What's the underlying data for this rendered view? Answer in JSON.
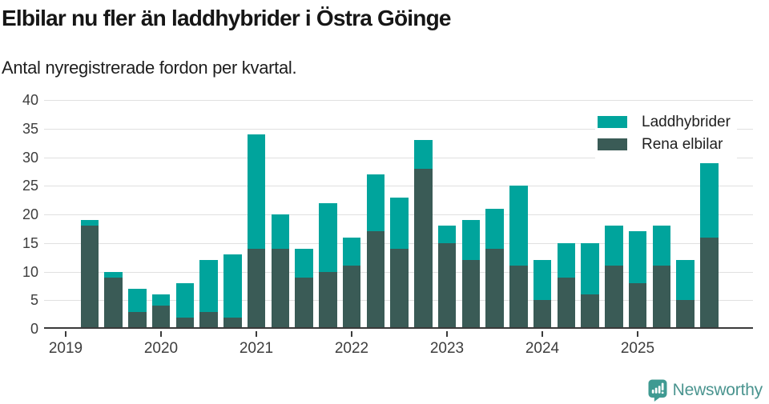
{
  "header": {
    "title": "Elbilar nu fler än laddhybrider i Östra Göinge",
    "subtitle": "Antal nyregistrerade fordon per kvartal."
  },
  "chart_data": {
    "type": "bar",
    "stacked": true,
    "title": "Elbilar nu fler än laddhybrider i Östra Göinge",
    "subtitle": "Antal nyregistrerade fordon per kvartal.",
    "xlabel": "",
    "ylabel": "",
    "ylim": [
      0,
      40
    ],
    "yticks": [
      0,
      5,
      10,
      15,
      20,
      25,
      30,
      35,
      40
    ],
    "grid": "horizontal",
    "x": [
      "2019 Q2",
      "2019 Q3",
      "2019 Q4",
      "2020 Q1",
      "2020 Q2",
      "2020 Q3",
      "2020 Q4",
      "2021 Q1",
      "2021 Q2",
      "2021 Q3",
      "2021 Q4",
      "2022 Q1",
      "2022 Q2",
      "2022 Q3",
      "2022 Q4",
      "2023 Q1",
      "2023 Q2",
      "2023 Q3",
      "2023 Q4",
      "2024 Q1",
      "2024 Q2",
      "2024 Q3",
      "2024 Q4",
      "2025 Q1",
      "2025 Q2",
      "2025 Q3",
      "2025 Q4"
    ],
    "series": [
      {
        "name": "Rena elbilar",
        "color": "#3a5b56",
        "values": [
          18,
          9,
          3,
          4,
          2,
          3,
          2,
          14,
          14,
          9,
          10,
          11,
          17,
          14,
          28,
          15,
          12,
          14,
          11,
          5,
          9,
          6,
          11,
          8,
          11,
          5,
          16
        ]
      },
      {
        "name": "Laddhybrider",
        "color": "#00a49c",
        "values": [
          1,
          1,
          4,
          2,
          6,
          9,
          11,
          20,
          6,
          5,
          12,
          5,
          10,
          9,
          5,
          3,
          7,
          7,
          14,
          7,
          6,
          9,
          7,
          9,
          7,
          7,
          13
        ]
      }
    ],
    "stack_order": "bottom-to-top",
    "totals": [
      19,
      10,
      7,
      6,
      8,
      12,
      13,
      34,
      20,
      14,
      22,
      16,
      27,
      23,
      33,
      18,
      19,
      21,
      25,
      12,
      15,
      15,
      18,
      17,
      18,
      12,
      29
    ],
    "xticks": [
      {
        "label": "2019",
        "quarter_index": -1
      },
      {
        "label": "2020",
        "quarter_index": 3
      },
      {
        "label": "2021",
        "quarter_index": 7
      },
      {
        "label": "2022",
        "quarter_index": 11
      },
      {
        "label": "2023",
        "quarter_index": 15
      },
      {
        "label": "2024",
        "quarter_index": 19
      },
      {
        "label": "2025",
        "quarter_index": 23
      }
    ],
    "legend": {
      "position": "top-right",
      "entries": [
        "Laddhybrider",
        "Rena elbilar"
      ]
    },
    "palette": {
      "grid": "#e0e0e0",
      "axis": "#3a3a3a",
      "tick_label": "#3d3d3d",
      "title": "#161616"
    }
  },
  "footer": {
    "brand": "Newsworthy",
    "logo_icon": "newsworthy-speech-bubble-bar-chart-icon",
    "icon_color": "#3f9a92",
    "icon_glyph_color": "#ffffff",
    "brand_color": "#4a948f"
  }
}
